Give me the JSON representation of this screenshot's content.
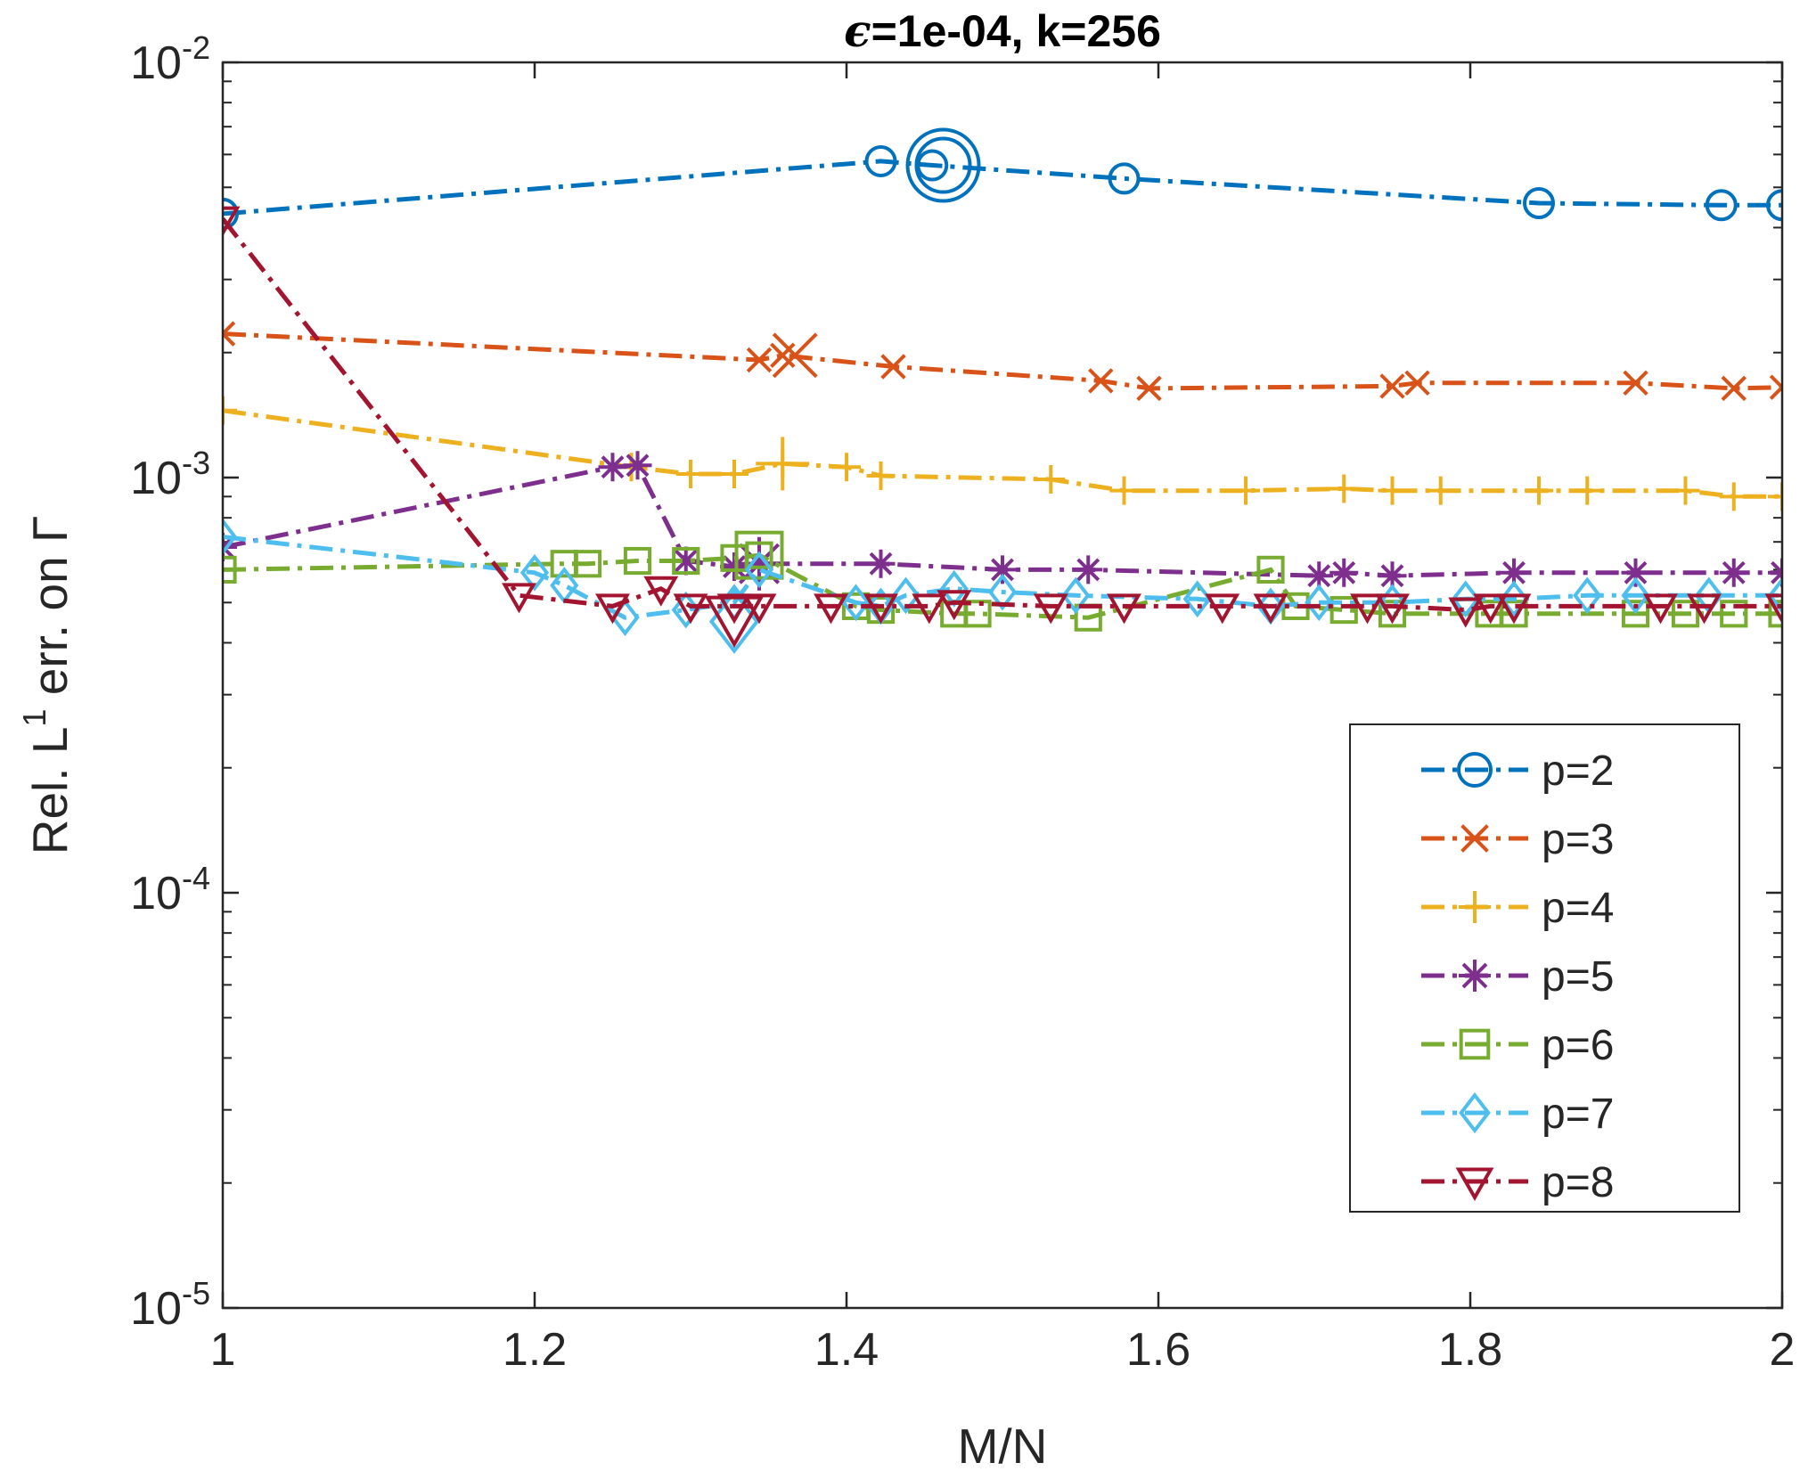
{
  "chart_data": {
    "type": "line",
    "title_prefix": "ϵ",
    "title_rest": "=1e-04, k=256",
    "xlabel": "M/N",
    "ylabel_prefix": "Rel. L",
    "ylabel_sup": "1",
    "ylabel_suffix": " err. on Γ",
    "xlim": [
      1,
      2
    ],
    "ylim": [
      1e-05,
      0.01
    ],
    "yscale": "log",
    "grid": false,
    "legend_position": "lower-right",
    "xticks": [
      "1",
      "1.2",
      "1.4",
      "1.6",
      "1.8",
      "2"
    ],
    "yticks": [
      {
        "base": "10",
        "exp": "-5"
      },
      {
        "base": "10",
        "exp": "-4"
      },
      {
        "base": "10",
        "exp": "-3"
      },
      {
        "base": "10",
        "exp": "-2"
      }
    ],
    "series": [
      {
        "name": "p=2",
        "color": "#0072BD",
        "marker": "circle",
        "x": [
          1.0,
          1.422,
          1.455,
          1.578,
          1.844,
          1.961,
          2.0
        ],
        "y": [
          0.00432,
          0.00578,
          0.00565,
          0.00525,
          0.00458,
          0.00453,
          0.00453
        ],
        "big": {
          "x": 1.462,
          "y": 0.00565
        }
      },
      {
        "name": "p=3",
        "color": "#D95319",
        "marker": "x",
        "x": [
          1.0,
          1.344,
          1.359,
          1.43,
          1.563,
          1.594,
          1.75,
          1.766,
          1.906,
          1.969,
          2.0
        ],
        "y": [
          0.00222,
          0.00192,
          0.00197,
          0.00185,
          0.00171,
          0.00164,
          0.00166,
          0.00169,
          0.00169,
          0.00164,
          0.00165
        ],
        "big": {
          "x": 1.367,
          "y": 0.00197
        }
      },
      {
        "name": "p=4",
        "color": "#EDB120",
        "marker": "plus",
        "x": [
          1.0,
          1.262,
          1.3,
          1.328,
          1.359,
          1.4,
          1.422,
          1.531,
          1.578,
          1.656,
          1.719,
          1.75,
          1.781,
          1.844,
          1.875,
          1.938,
          1.969,
          2.0
        ],
        "y": [
          0.00145,
          0.00106,
          0.00102,
          0.00102,
          0.00108,
          0.00106,
          0.00101,
          0.00099,
          0.00093,
          0.00093,
          0.00094,
          0.00093,
          0.00093,
          0.00093,
          0.00093,
          0.00093,
          0.0009,
          0.0009
        ],
        "big": {
          "x": 1.359,
          "y": 0.00108
        }
      },
      {
        "name": "p=5",
        "color": "#7E2F8E",
        "marker": "asterisk",
        "x": [
          1.0,
          1.25,
          1.266,
          1.297,
          1.328,
          1.344,
          1.422,
          1.5,
          1.555,
          1.703,
          1.719,
          1.75,
          1.828,
          1.906,
          1.969,
          2.0
        ],
        "y": [
          0.00068,
          0.00106,
          0.00107,
          0.00063,
          0.00061,
          0.00062,
          0.00062,
          0.0006,
          0.0006,
          0.00058,
          0.00059,
          0.00058,
          0.00059,
          0.00059,
          0.00059,
          0.00059
        ],
        "big": {
          "x": 1.344,
          "y": 0.00062
        }
      },
      {
        "name": "p=6",
        "color": "#77AC30",
        "marker": "square",
        "x": [
          1.0,
          1.219,
          1.234,
          1.266,
          1.297,
          1.328,
          1.344,
          1.406,
          1.422,
          1.469,
          1.484,
          1.555,
          1.672,
          1.688,
          1.719,
          1.75,
          1.812,
          1.828,
          1.906,
          1.938,
          1.969,
          2.0
        ],
        "y": [
          0.0006,
          0.00062,
          0.00062,
          0.00063,
          0.00063,
          0.00064,
          0.00065,
          0.00049,
          0.00048,
          0.00047,
          0.00047,
          0.00046,
          0.0006,
          0.00049,
          0.00048,
          0.00047,
          0.00047,
          0.00047,
          0.00047,
          0.00047,
          0.00047,
          0.00047
        ],
        "big": {
          "x": 1.344,
          "y": 0.00065
        }
      },
      {
        "name": "p=7",
        "color": "#4DBEEE",
        "marker": "diamond",
        "x": [
          1.0,
          1.2,
          1.219,
          1.258,
          1.297,
          1.328,
          1.344,
          1.406,
          1.422,
          1.438,
          1.469,
          1.5,
          1.547,
          1.625,
          1.672,
          1.703,
          1.75,
          1.797,
          1.828,
          1.875,
          1.906,
          1.953,
          2.0
        ],
        "y": [
          0.00072,
          0.00059,
          0.00055,
          0.00046,
          0.00048,
          0.0005,
          0.0006,
          0.0005,
          0.00049,
          0.00052,
          0.00054,
          0.00053,
          0.00052,
          0.00051,
          0.00049,
          0.0005,
          0.0005,
          0.00051,
          0.00051,
          0.00052,
          0.00052,
          0.00052,
          0.00052
        ],
        "big": {
          "x": 1.328,
          "y": 0.00045
        }
      },
      {
        "name": "p=8",
        "color": "#A2142F",
        "marker": "triangle-down",
        "x": [
          1.0,
          1.19,
          1.25,
          1.281,
          1.3,
          1.328,
          1.344,
          1.39,
          1.422,
          1.453,
          1.469,
          1.531,
          1.578,
          1.641,
          1.672,
          1.734,
          1.75,
          1.797,
          1.813,
          1.828,
          1.922,
          1.95,
          2.0
        ],
        "y": [
          0.0042,
          0.00052,
          0.00049,
          0.00054,
          0.00049,
          0.00049,
          0.00049,
          0.00049,
          0.00049,
          0.00049,
          0.0005,
          0.00049,
          0.00049,
          0.00049,
          0.00049,
          0.00049,
          0.00049,
          0.00048,
          0.00049,
          0.00049,
          0.00049,
          0.00049,
          0.00049
        ],
        "big": {
          "x": 1.328,
          "y": 0.00046
        }
      }
    ]
  }
}
